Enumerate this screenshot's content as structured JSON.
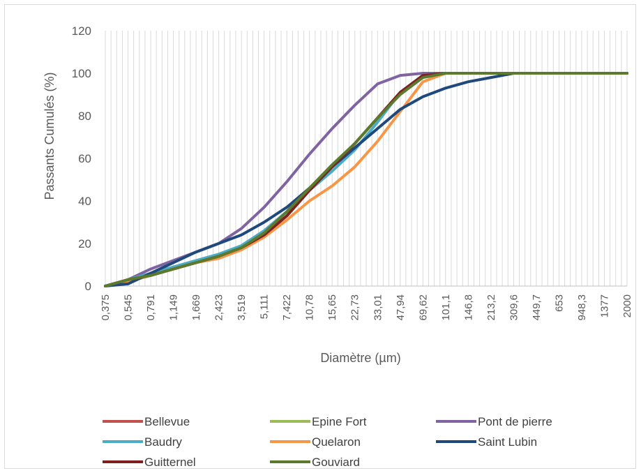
{
  "chart_data": {
    "type": "line",
    "title": "",
    "xlabel": "Diamètre (µm)",
    "ylabel": "Passants Cumulés (%)",
    "ylim": [
      0,
      120
    ],
    "yticks": [
      "0",
      "20",
      "40",
      "60",
      "80",
      "100",
      "120"
    ],
    "grid": "vertical lines at each size class",
    "legend_position": "bottom",
    "categories": [
      "0,375",
      "0,545",
      "0,791",
      "1,149",
      "1,669",
      "2,423",
      "3,519",
      "5,111",
      "7,422",
      "10,78",
      "15,65",
      "22,73",
      "33,01",
      "47,94",
      "69,62",
      "101,1",
      "146,8",
      "213,2",
      "309,6",
      "449,7",
      "653",
      "948,3",
      "1377",
      "2000"
    ],
    "series": [
      {
        "name": "Bellevue",
        "color": "#c0504d",
        "values": [
          0,
          3,
          5,
          8,
          11,
          14,
          18,
          24,
          33,
          45,
          56,
          67,
          79,
          91,
          99,
          100,
          100,
          100,
          100,
          100,
          100,
          100,
          100,
          100
        ]
      },
      {
        "name": "Epine Fort",
        "color": "#9bbb59",
        "values": [
          0,
          3,
          5,
          8,
          11,
          14,
          18,
          24,
          33,
          45,
          56,
          67,
          79,
          91,
          99,
          100,
          100,
          100,
          100,
          100,
          100,
          100,
          100,
          100
        ]
      },
      {
        "name": "Pont de pierre",
        "color": "#8064a2",
        "values": [
          0,
          3,
          8,
          12,
          16,
          20,
          27,
          37,
          49,
          62,
          74,
          85,
          95,
          99,
          100,
          100,
          100,
          100,
          100,
          100,
          100,
          100,
          100,
          100
        ]
      },
      {
        "name": "Baudry",
        "color": "#4bacc6",
        "values": [
          0,
          3,
          6,
          9,
          12,
          15,
          19,
          26,
          35,
          45,
          54,
          64,
          77,
          91,
          99,
          100,
          100,
          100,
          100,
          100,
          100,
          100,
          100,
          100
        ]
      },
      {
        "name": "Quelaron",
        "color": "#f79646",
        "values": [
          0,
          2,
          5,
          8,
          11,
          13,
          17,
          23,
          31,
          40,
          47,
          56,
          68,
          82,
          96,
          100,
          100,
          100,
          100,
          100,
          100,
          100,
          100,
          100
        ]
      },
      {
        "name": "Saint Lubin",
        "color": "#1f497d",
        "values": [
          0,
          1,
          6,
          11,
          16,
          20,
          24,
          30,
          37,
          46,
          56,
          65,
          74,
          83,
          89,
          93,
          96,
          98,
          100,
          100,
          100,
          100,
          100,
          100
        ]
      },
      {
        "name": "Guitternel",
        "color": "#7f1f1f",
        "values": [
          0,
          3,
          5,
          8,
          11,
          14,
          18,
          24,
          33,
          45,
          56,
          67,
          79,
          91,
          99,
          100,
          100,
          100,
          100,
          100,
          100,
          100,
          100,
          100
        ]
      },
      {
        "name": "Gouviard",
        "color": "#5b7a2e",
        "values": [
          0,
          3,
          5,
          8,
          11,
          14,
          18,
          25,
          35,
          46,
          57,
          67,
          79,
          90,
          98,
          100,
          100,
          100,
          100,
          100,
          100,
          100,
          100,
          100
        ]
      }
    ]
  }
}
